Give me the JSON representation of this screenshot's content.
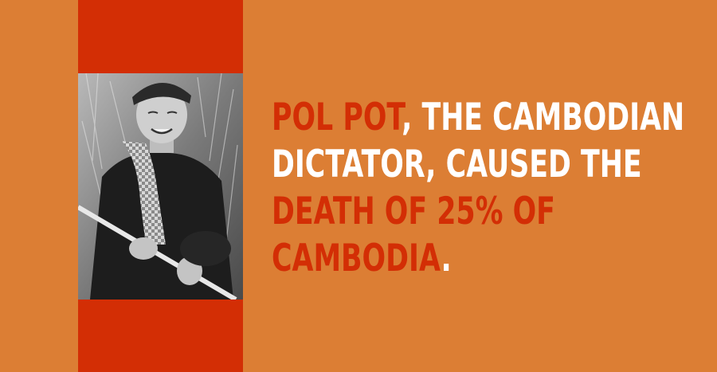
{
  "colors": {
    "background": "#dc7e34",
    "band": "#d32e05",
    "highlight": "#d32e05",
    "text": "#ffffff"
  },
  "photo": {
    "icon": "portrait-photo-icon",
    "style": "black-and-white"
  },
  "fact": {
    "line1_highlight": "Pol Pot",
    "line1_rest": ", the Cambodian",
    "line2": "dictator, caused the",
    "line3_highlight": "death of 25% of",
    "line4_highlight": "Cambodia",
    "line4_rest": "."
  }
}
